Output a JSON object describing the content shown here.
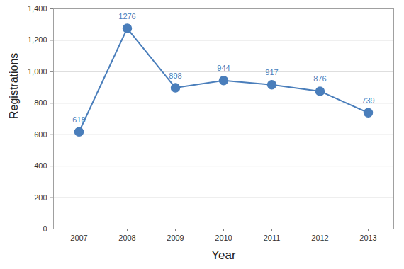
{
  "chart_data": {
    "type": "line",
    "x_label": "Year",
    "y_label": "Registrations",
    "categories": [
      "2007",
      "2008",
      "2009",
      "2010",
      "2011",
      "2012",
      "2013"
    ],
    "values": [
      618,
      1276,
      898,
      944,
      917,
      876,
      739
    ],
    "color": "#4a7ebb",
    "marker": "circle",
    "ylim": [
      0,
      1400
    ],
    "yticks": [
      0,
      200,
      400,
      600,
      800,
      1000,
      1200,
      1400
    ],
    "grid": true,
    "data_labels": true
  }
}
